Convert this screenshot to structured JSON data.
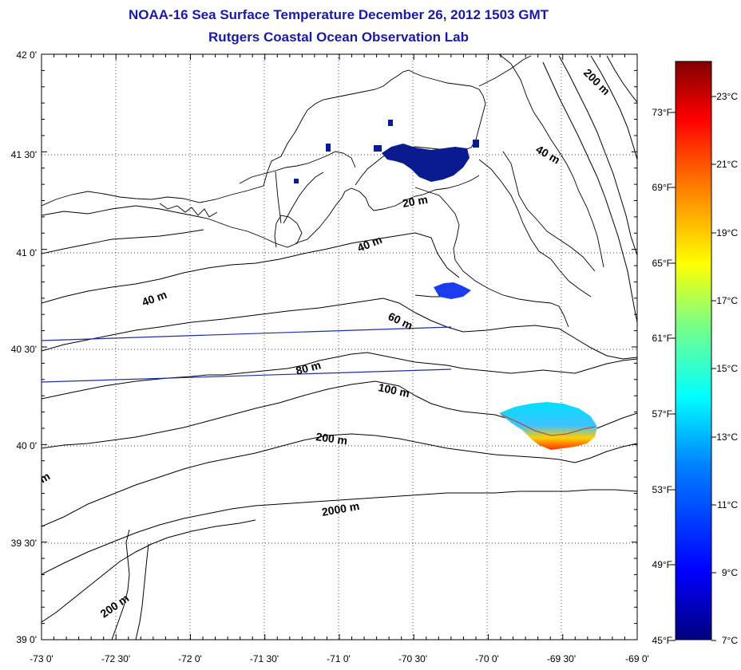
{
  "title": "NOAA-16 Sea Surface Temperature December 26, 2012 1503 GMT",
  "subtitle": "Rutgers Coastal Ocean Observation Lab",
  "map": {
    "lat_labels": [
      "42 0'",
      "41 30'",
      "41 0'",
      "40 30'",
      "40 0'",
      "39 30'",
      "39 0'"
    ],
    "lon_labels": [
      "-73 0'",
      "-72 30'",
      "-72 0'",
      "-71 30'",
      "-71 0'",
      "-70 30'",
      "-70 0'",
      "-69 30'",
      "-69 0'"
    ],
    "contour_labels": [
      "20 m",
      "40 m",
      "40 m",
      "40 m",
      "60 m",
      "80 m",
      "100 m",
      "200 m",
      "200 m",
      "200 m",
      "2000 m",
      "m"
    ]
  },
  "colorbar": {
    "celsius": [
      "23°C",
      "21°C",
      "19°C",
      "17°C",
      "15°C",
      "13°C",
      "11°C",
      "9°C",
      "7°C"
    ],
    "fahrenheit": [
      "73°F",
      "69°F",
      "65°F",
      "61°F",
      "57°F",
      "53°F",
      "49°F",
      "45°F"
    ],
    "colors": [
      "#000080",
      "#0000ff",
      "#0080ff",
      "#00ffff",
      "#80ff80",
      "#ffff00",
      "#ff8000",
      "#ff0000",
      "#800000"
    ]
  }
}
